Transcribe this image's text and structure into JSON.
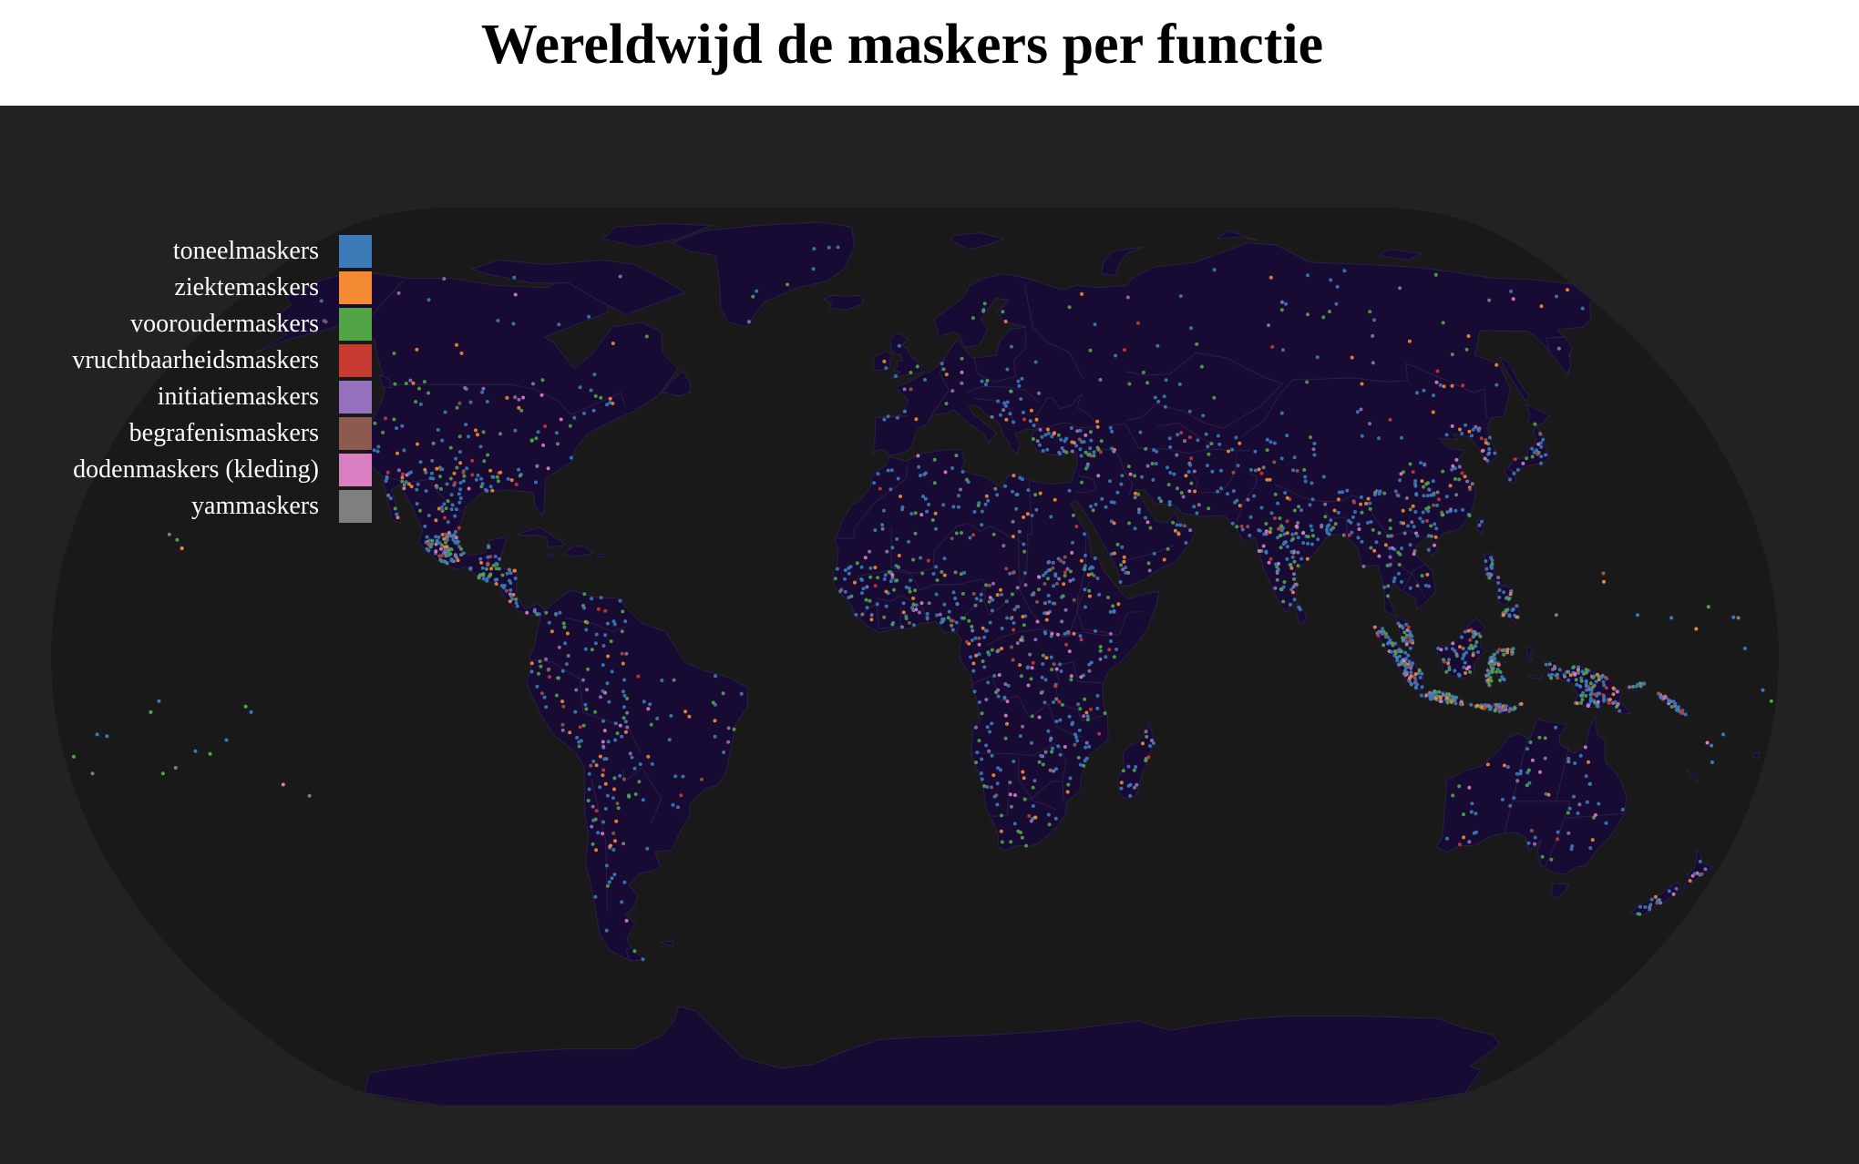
{
  "title": "Wereldwijd de maskers per functie",
  "colors": {
    "background": "#222222",
    "ocean": "#191919",
    "land": "#170a33",
    "border": "#2a1f45"
  },
  "legend": {
    "items": [
      {
        "label": "toneelmaskers",
        "color": "#3c7bb8"
      },
      {
        "label": "ziektemaskers",
        "color": "#f58a35"
      },
      {
        "label": "voorouder­maskers",
        "color": "#52a447"
      },
      {
        "label": "vruchtbaarheidsmaskers",
        "color": "#c73a32"
      },
      {
        "label": "initiatiemaskers",
        "color": "#9470bd"
      },
      {
        "label": "begrafenismaskers",
        "color": "#8c5a4f"
      },
      {
        "label": "dodenmaskers (kleding)",
        "color": "#d97fc1"
      },
      {
        "label": "yammaskers",
        "color": "#7f7f7f"
      }
    ]
  }
}
